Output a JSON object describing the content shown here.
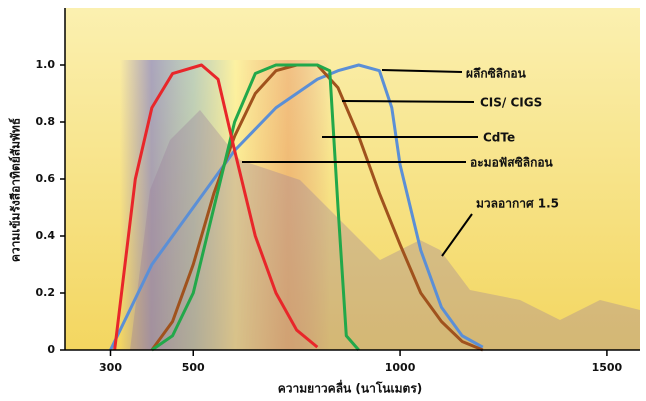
{
  "chart_data": {
    "type": "line",
    "xlabel": "ความยาวคลื่น (นาโนเมตร)",
    "ylabel": "ความเข้มรังสีอาทิตย์สัมพัทธ์",
    "annotation": "มวลอากาศ 1.5",
    "xlim": [
      190,
      1580
    ],
    "xticks": [
      300,
      500,
      1000,
      1500
    ],
    "ylim": [
      0,
      1.2
    ],
    "yticks": [
      0,
      0.2,
      0.4,
      0.6,
      0.8,
      {
        "value": 1.0,
        "label": "1.0"
      }
    ],
    "series": [
      {
        "name": "ผลึกซิลิกอน",
        "color": "#5b8fd6",
        "x": [
          300,
          350,
          400,
          500,
          600,
          700,
          800,
          850,
          900,
          950,
          980,
          1000,
          1050,
          1100,
          1150,
          1200
        ],
        "values": [
          0,
          0.15,
          0.3,
          0.5,
          0.7,
          0.85,
          0.95,
          0.98,
          1.0,
          0.98,
          0.85,
          0.65,
          0.35,
          0.15,
          0.05,
          0.01
        ]
      },
      {
        "name": "CIS/ CIGS",
        "color": "#a0521d",
        "x": [
          400,
          450,
          500,
          550,
          600,
          650,
          700,
          750,
          800,
          850,
          900,
          950,
          1000,
          1050,
          1100,
          1150,
          1200
        ],
        "values": [
          0,
          0.1,
          0.3,
          0.55,
          0.75,
          0.9,
          0.98,
          1.0,
          1.0,
          0.92,
          0.75,
          0.55,
          0.37,
          0.2,
          0.1,
          0.03,
          0
        ]
      },
      {
        "name": "CdTe",
        "color": "#22a84a",
        "x": [
          400,
          450,
          500,
          550,
          600,
          650,
          700,
          800,
          830,
          850,
          870,
          900
        ],
        "values": [
          0,
          0.05,
          0.2,
          0.5,
          0.8,
          0.97,
          1.0,
          1.0,
          0.98,
          0.5,
          0.05,
          0
        ]
      },
      {
        "name": "อะมอฟัสซิลิกอน",
        "color": "#e8262a",
        "x": [
          310,
          360,
          400,
          450,
          520,
          560,
          600,
          650,
          700,
          750,
          800
        ],
        "values": [
          0,
          0.6,
          0.85,
          0.97,
          1.0,
          0.95,
          0.7,
          0.4,
          0.2,
          0.07,
          0.01
        ]
      }
    ]
  }
}
